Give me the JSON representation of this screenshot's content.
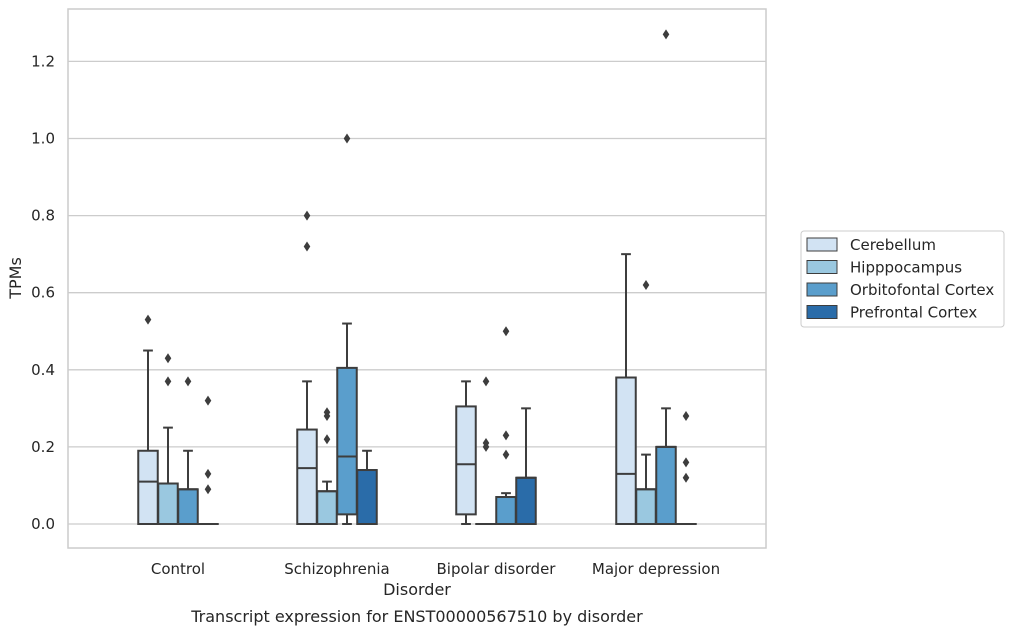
{
  "caption": "Transcript expression for ENST00000567510 by disorder",
  "chart_data": {
    "type": "box",
    "xlabel": "Disorder",
    "ylabel": "TPMs",
    "ylim": [
      -0.062,
      1.335
    ],
    "yticks": [
      "0.0",
      "0.2",
      "0.4",
      "0.6",
      "0.8",
      "1.0",
      "1.2"
    ],
    "ytick_values": [
      0.0,
      0.2,
      0.4,
      0.6,
      0.8,
      1.0,
      1.2
    ],
    "grid": "horizontal",
    "legend_position": "right",
    "categories": [
      "Control",
      "Schizophrenia",
      "Bipolar disorder",
      "Major depression"
    ],
    "series": [
      {
        "name": "Cerebellum",
        "color": "#d2e3f3",
        "boxes": [
          {
            "q1": 0.0,
            "median": 0.11,
            "q3": 0.19,
            "whisker_low": 0.0,
            "whisker_high": 0.45,
            "outliers": [
              0.53
            ]
          },
          {
            "q1": 0.0,
            "median": 0.145,
            "q3": 0.245,
            "whisker_low": 0.0,
            "whisker_high": 0.37,
            "outliers": [
              0.72,
              0.8
            ]
          },
          {
            "q1": 0.025,
            "median": 0.155,
            "q3": 0.305,
            "whisker_low": 0.0,
            "whisker_high": 0.37,
            "outliers": []
          },
          {
            "q1": 0.0,
            "median": 0.13,
            "q3": 0.38,
            "whisker_low": 0.0,
            "whisker_high": 0.7,
            "outliers": []
          }
        ]
      },
      {
        "name": "Hipppocampus",
        "color": "#9ac8e0",
        "boxes": [
          {
            "q1": 0.0,
            "median": 0.105,
            "q3": 0.105,
            "whisker_low": 0.0,
            "whisker_high": 0.25,
            "outliers": [
              0.37,
              0.43
            ]
          },
          {
            "q1": 0.0,
            "median": 0.085,
            "q3": 0.085,
            "whisker_low": 0.0,
            "whisker_high": 0.11,
            "outliers": [
              0.22,
              0.28,
              0.29
            ]
          },
          {
            "q1": 0.0,
            "median": 0.0,
            "q3": 0.0,
            "whisker_low": 0.0,
            "whisker_high": 0.0,
            "outliers": [
              0.2,
              0.21,
              0.37
            ]
          },
          {
            "q1": 0.0,
            "median": 0.09,
            "q3": 0.09,
            "whisker_low": 0.0,
            "whisker_high": 0.18,
            "outliers": [
              0.62
            ]
          }
        ]
      },
      {
        "name": "Orbitofontal Cortex",
        "color": "#5a9ecc",
        "boxes": [
          {
            "q1": 0.0,
            "median": 0.09,
            "q3": 0.09,
            "whisker_low": 0.0,
            "whisker_high": 0.19,
            "outliers": [
              0.37
            ]
          },
          {
            "q1": 0.025,
            "median": 0.175,
            "q3": 0.405,
            "whisker_low": 0.0,
            "whisker_high": 0.52,
            "outliers": [
              1.0
            ]
          },
          {
            "q1": 0.0,
            "median": 0.07,
            "q3": 0.07,
            "whisker_low": 0.0,
            "whisker_high": 0.08,
            "outliers": [
              0.18,
              0.23,
              0.5
            ]
          },
          {
            "q1": 0.0,
            "median": 0.2,
            "q3": 0.2,
            "whisker_low": 0.0,
            "whisker_high": 0.3,
            "outliers": [
              1.27
            ]
          }
        ]
      },
      {
        "name": "Prefrontal Cortex",
        "color": "#2a6ca9",
        "boxes": [
          {
            "q1": 0.0,
            "median": 0.0,
            "q3": 0.0,
            "whisker_low": 0.0,
            "whisker_high": 0.0,
            "outliers": [
              0.09,
              0.13,
              0.32
            ]
          },
          {
            "q1": 0.0,
            "median": 0.14,
            "q3": 0.14,
            "whisker_low": 0.0,
            "whisker_high": 0.19,
            "outliers": []
          },
          {
            "q1": 0.0,
            "median": 0.12,
            "q3": 0.12,
            "whisker_low": 0.0,
            "whisker_high": 0.3,
            "outliers": []
          },
          {
            "q1": 0.0,
            "median": 0.0,
            "q3": 0.0,
            "whisker_low": 0.0,
            "whisker_high": 0.0,
            "outliers": [
              0.12,
              0.16,
              0.28
            ]
          }
        ]
      }
    ]
  }
}
